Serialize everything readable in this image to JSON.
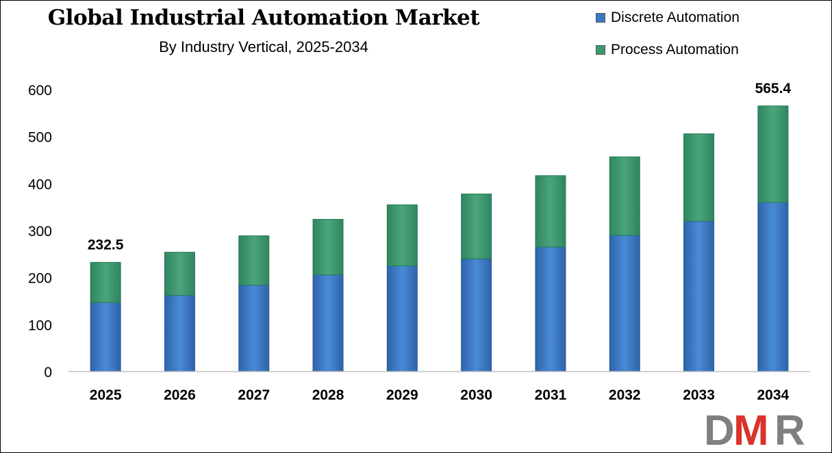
{
  "chart_data": {
    "type": "bar",
    "stacked": true,
    "title": "Global Industrial Automation Market",
    "subtitle": "By Industry Vertical, 2025-2034",
    "categories": [
      "2025",
      "2026",
      "2027",
      "2028",
      "2029",
      "2030",
      "2031",
      "2032",
      "2033",
      "2034"
    ],
    "series": [
      {
        "name": "Discrete Automation",
        "color": "#3a78c2",
        "values": [
          147,
          162,
          184,
          206,
          225,
          240,
          265,
          290,
          320,
          360
        ]
      },
      {
        "name": "Process Automation",
        "color": "#3b9a6e",
        "values": [
          85.5,
          92,
          105,
          118,
          130,
          138,
          152,
          167,
          186,
          205.4
        ]
      }
    ],
    "data_labels": {
      "2025": "232.5",
      "2034": "565.4"
    },
    "yticks": [
      "0",
      "100",
      "200",
      "300",
      "400",
      "500",
      "600"
    ],
    "ylim": [
      0,
      600
    ],
    "grid": false,
    "legend_position": "top-right"
  },
  "logo": {
    "text": "DMR",
    "colors": [
      "#7f7f7f",
      "#d9342b",
      "#7f7f7f"
    ]
  }
}
